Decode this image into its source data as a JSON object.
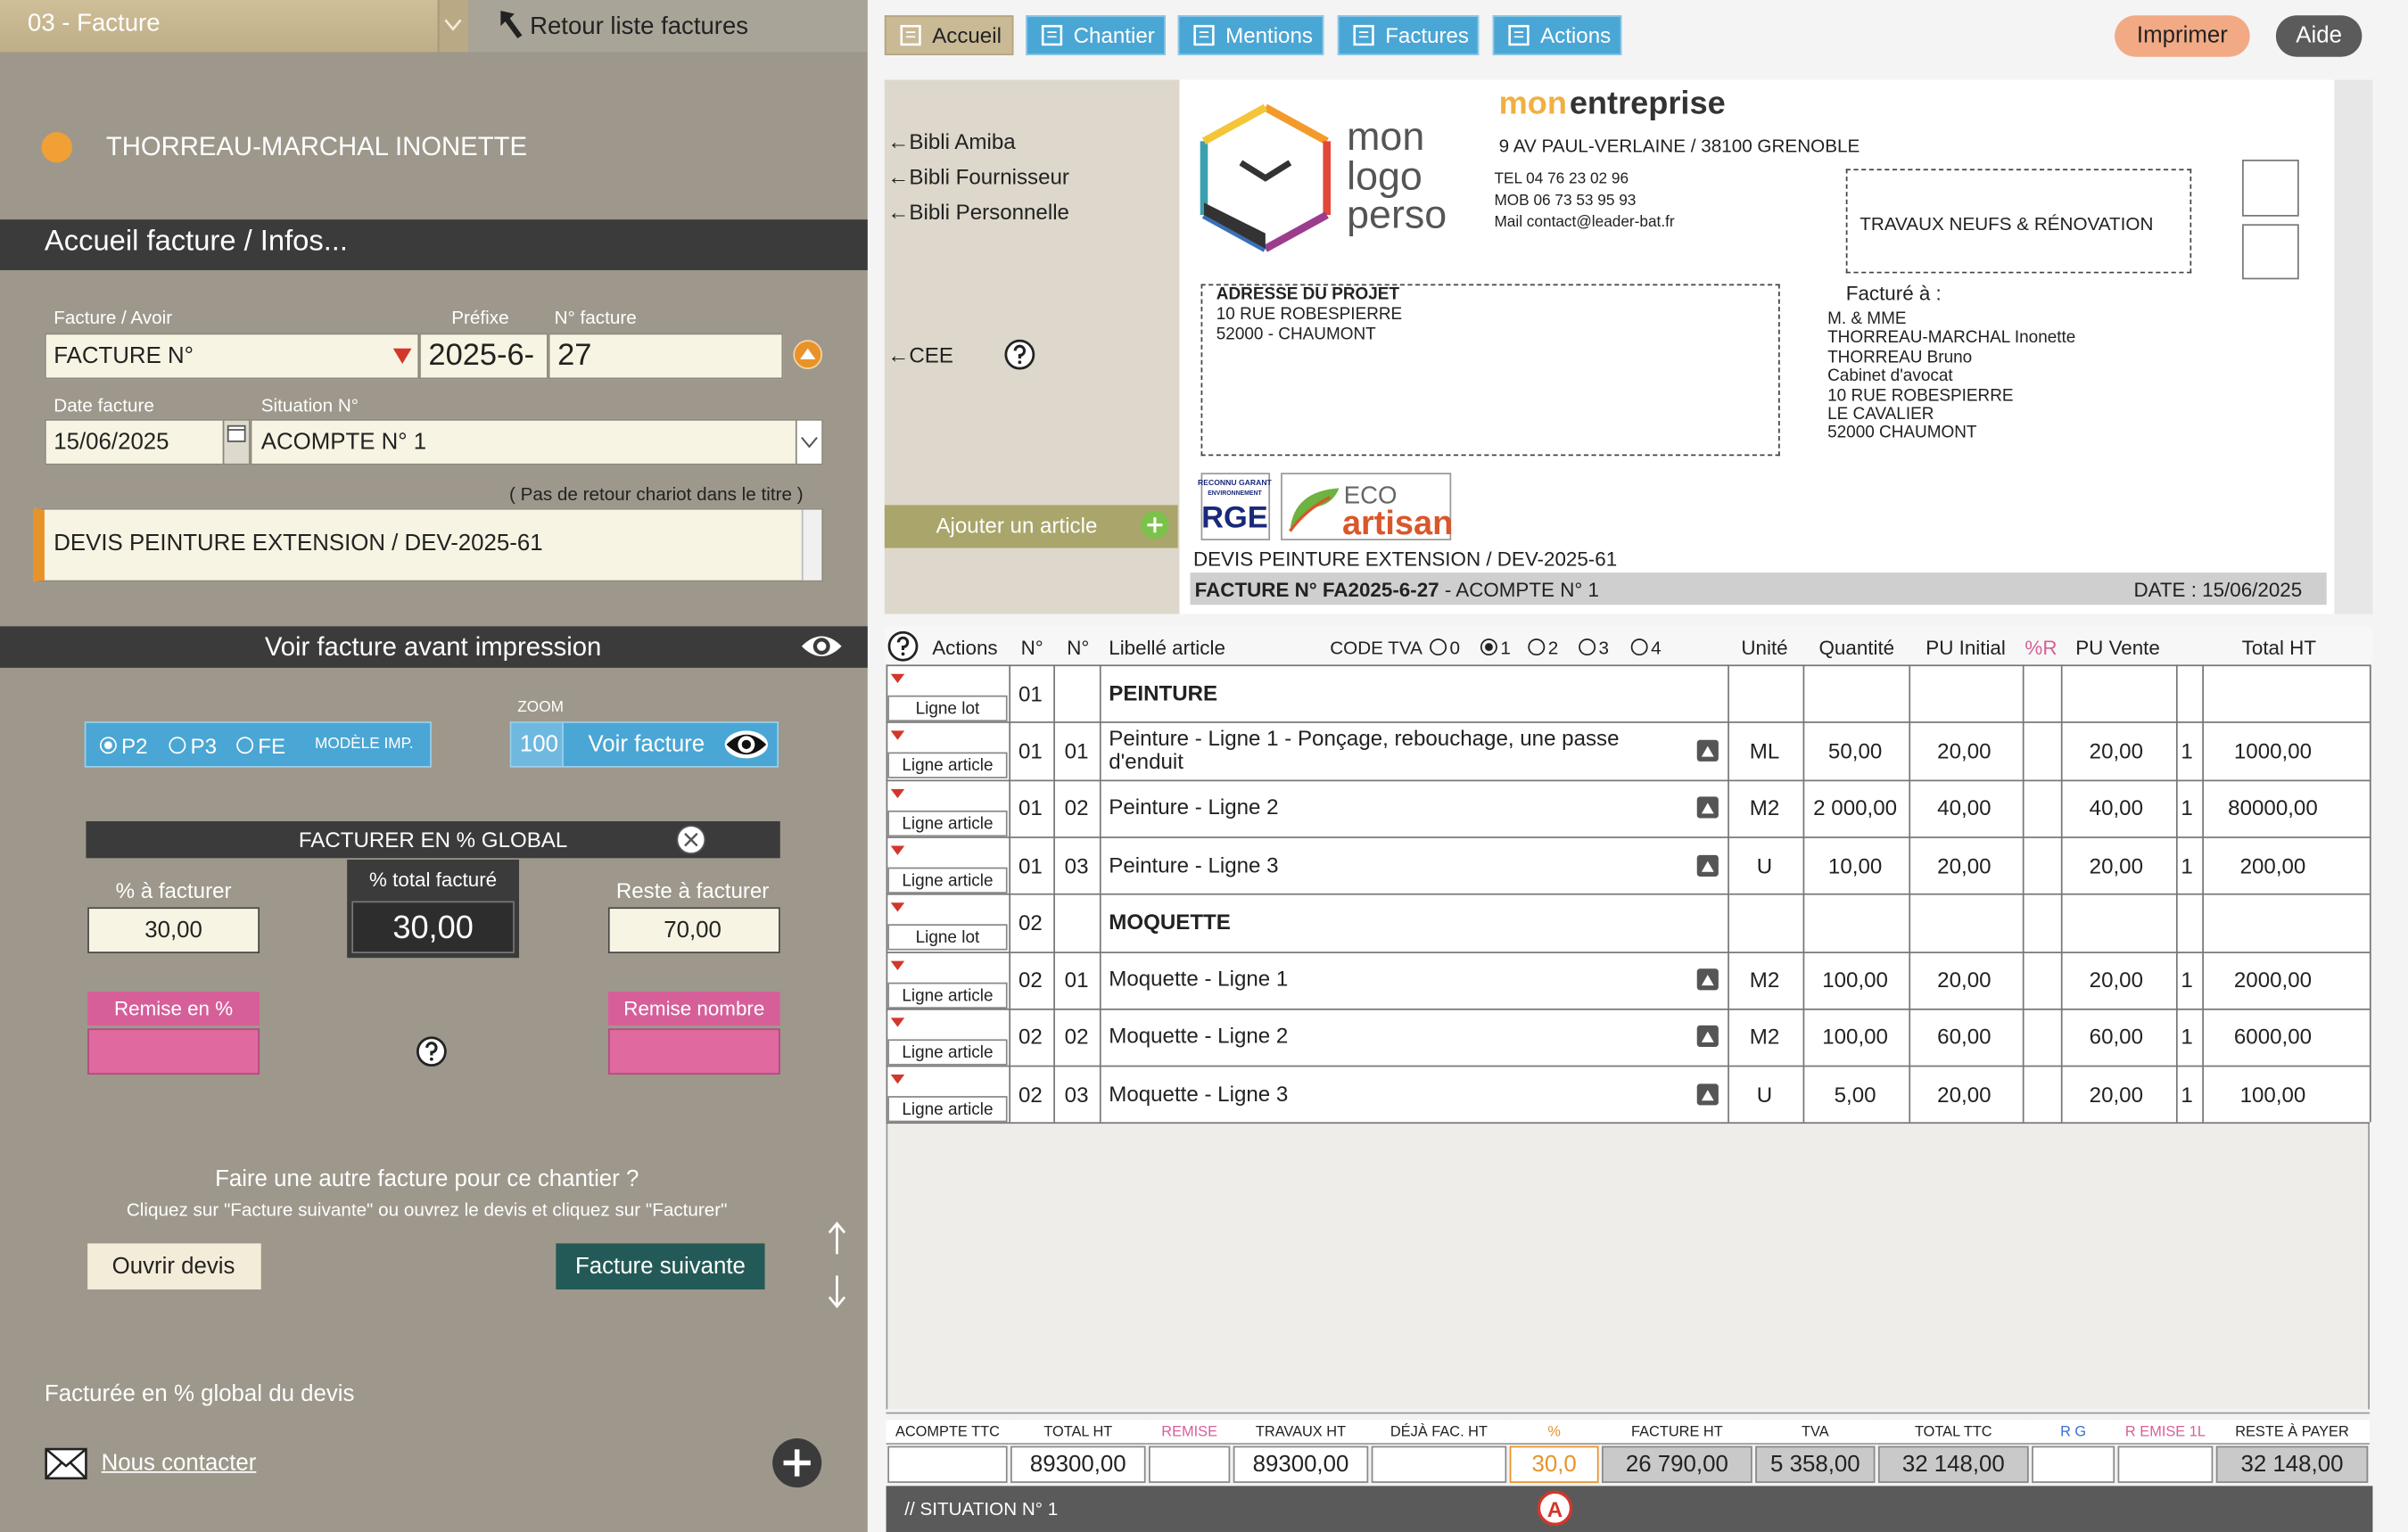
{
  "left_panel": {
    "doc_selector": "03 - Facture",
    "back_button": "Retour liste factures",
    "client_name": "THORREAU-MARCHAL INONETTE",
    "section_title": "Accueil facture / Infos...",
    "fields": {
      "type_label": "Facture / Avoir",
      "type_value": "FACTURE N°",
      "prefix_label": "Préfixe",
      "prefix_value": "2025-6-",
      "number_label": "N° facture",
      "number_value": "27",
      "date_label": "Date facture",
      "date_value": "15/06/2025",
      "situation_label": "Situation N°",
      "situation_value": "ACOMPTE N° 1",
      "title_hint": "( Pas de retour chariot dans le titre )",
      "title_value": "DEVIS PEINTURE EXTENSION / DEV-2025-61"
    },
    "preview_bar": "Voir facture avant impression",
    "print_models": {
      "options": [
        "P2",
        "P3",
        "FE"
      ],
      "selected": "P2",
      "label": "MODÈLE IMP."
    },
    "zoom": {
      "label": "ZOOM",
      "value": "100",
      "button": "Voir facture"
    },
    "global_percent": {
      "title": "FACTURER EN % GLOBAL",
      "to_invoice_label": "% à facturer",
      "to_invoice": "30,00",
      "total_label": "% total facturé",
      "total": "30,00",
      "remaining_label": "Reste à facturer",
      "remaining": "70,00",
      "discount_pct_label": "Remise en %",
      "discount_amount_label": "Remise nombre"
    },
    "another_invoice": {
      "question": "Faire une autre facture pour ce chantier ?",
      "hint": "Cliquez sur \"Facture suivante\" ou ouvrez le devis et cliquez sur \"Facturer\"",
      "open_quote": "Ouvrir devis",
      "next_invoice": "Facture suivante"
    },
    "status": "Facturée en % global du devis",
    "contact": "Nous contacter"
  },
  "toolbar": {
    "tabs": [
      "Accueil",
      "Chantier",
      "Mentions",
      "Factures",
      "Actions"
    ],
    "print": "Imprimer",
    "help": "Aide"
  },
  "sidebar": {
    "library_links": [
      "←Bibli Amiba",
      "←Bibli Fournisseur",
      "←Bibli Personnelle"
    ],
    "cee": "←CEE",
    "add_article": "Ajouter un article"
  },
  "invoice_header": {
    "logo": [
      "mon",
      "logo",
      "perso"
    ],
    "company_name": [
      "mon",
      "entreprise"
    ],
    "address": "9 AV PAUL-VERLAINE / 38100 GRENOBLE",
    "contacts": [
      "TEL 04 76 23 02 96",
      "MOB 06 73 53 95 93",
      "Mail contact@leader-bat.fr"
    ],
    "activity": "TRAVAUX NEUFS & RÉNOVATION",
    "project_address": {
      "title": "ADRESSE DU PROJET",
      "lines": [
        "10 RUE ROBESPIERRE",
        "52000 - CHAUMONT"
      ]
    },
    "billed_to_label": "Facturé à :",
    "billed_to": [
      "M. & MME",
      "THORREAU-MARCHAL Inonette",
      "THORREAU Bruno",
      "Cabinet d'avocat",
      "10 RUE ROBESPIERRE",
      "LE CAVALIER",
      "52000 CHAUMONT"
    ],
    "badges": {
      "rge_top": "RECONNU GARANT",
      "rge_sub": "ENVIRONNEMENT",
      "rge_main": "RGE",
      "eco_top": "ECO",
      "eco_main": "artisan"
    },
    "document_title": "DEVIS PEINTURE EXTENSION / DEV-2025-61",
    "invoice_number": "FACTURE N° FA2025-6-27",
    "situation": " - ACOMPTE N° 1",
    "date": "DATE : 15/06/2025"
  },
  "table": {
    "columns": {
      "actions": "Actions",
      "lot": "N°",
      "line": "N°",
      "label": "Libellé article",
      "unit": "Unité",
      "qty": "Quantité",
      "pu_initial": "PU Initial",
      "r": "%R",
      "pu_sale": "PU Vente",
      "total": "Total HT"
    },
    "vat_code": {
      "label": "CODE TVA",
      "options": [
        "0",
        "1",
        "2",
        "3",
        "4"
      ],
      "selected": "1"
    },
    "rows": [
      {
        "action": "Ligne lot",
        "lot": "01",
        "label": "PEINTURE"
      },
      {
        "action": "Ligne article",
        "lot": "01",
        "line": "01",
        "label": "Peinture - Ligne 1 - Ponçage, rebouchage, une passe d'enduit",
        "unit": "ML",
        "qty": "50,00",
        "pu_initial": "20,00",
        "pu_sale": "20,00",
        "coef": "1",
        "total": "1000,00"
      },
      {
        "action": "Ligne article",
        "lot": "01",
        "line": "02",
        "label": "Peinture - Ligne 2",
        "unit": "M2",
        "qty": "2 000,00",
        "pu_initial": "40,00",
        "pu_sale": "40,00",
        "coef": "1",
        "total": "80000,00"
      },
      {
        "action": "Ligne article",
        "lot": "01",
        "line": "03",
        "label": "Peinture - Ligne 3",
        "unit": "U",
        "qty": "10,00",
        "pu_initial": "20,00",
        "pu_sale": "20,00",
        "coef": "1",
        "total": "200,00"
      },
      {
        "action": "Ligne lot",
        "lot": "02",
        "label": "MOQUETTE"
      },
      {
        "action": "Ligne article",
        "lot": "02",
        "line": "01",
        "label": "Moquette - Ligne 1",
        "unit": "M2",
        "qty": "100,00",
        "pu_initial": "20,00",
        "pu_sale": "20,00",
        "coef": "1",
        "total": "2000,00"
      },
      {
        "action": "Ligne article",
        "lot": "02",
        "line": "02",
        "label": "Moquette - Ligne 2",
        "unit": "M2",
        "qty": "100,00",
        "pu_initial": "60,00",
        "pu_sale": "60,00",
        "coef": "1",
        "total": "6000,00"
      },
      {
        "action": "Ligne article",
        "lot": "02",
        "line": "03",
        "label": "Moquette - Ligne 3",
        "unit": "U",
        "qty": "5,00",
        "pu_initial": "20,00",
        "pu_sale": "20,00",
        "coef": "1",
        "total": "100,00"
      }
    ]
  },
  "totals": [
    {
      "label": "ACOMPTE TTC"
    },
    {
      "label": "TOTAL HT",
      "value": "89300,00"
    },
    {
      "label": "REMISE"
    },
    {
      "label": "TRAVAUX HT",
      "value": "89300,00"
    },
    {
      "label": "DÉJÀ FAC. HT"
    },
    {
      "label": "%",
      "value": "30,0"
    },
    {
      "label": "FACTURE HT",
      "value": "26 790,00"
    },
    {
      "label": "TVA",
      "value": "5 358,00"
    },
    {
      "label": "TOTAL TTC",
      "value": "32 148,00"
    },
    {
      "label": "R G"
    },
    {
      "label": "R EMISE 1L"
    },
    {
      "label": "RESTE À PAYER",
      "value": "32 148,00"
    }
  ],
  "footer": {
    "situation": "// SITUATION N° 1",
    "marker": "A"
  }
}
